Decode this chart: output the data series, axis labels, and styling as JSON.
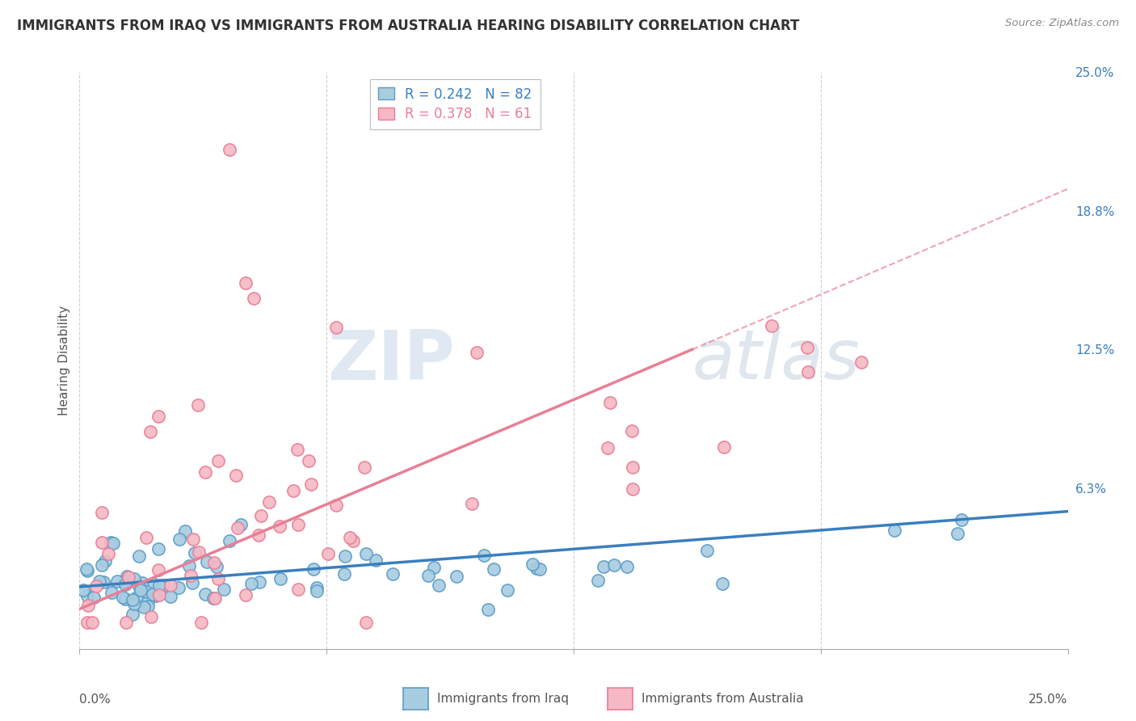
{
  "title": "IMMIGRANTS FROM IRAQ VS IMMIGRANTS FROM AUSTRALIA HEARING DISABILITY CORRELATION CHART",
  "source": "Source: ZipAtlas.com",
  "ylabel": "Hearing Disability",
  "xmin": 0.0,
  "xmax": 0.25,
  "ymin": -0.01,
  "ymax": 0.25,
  "iraq_color": "#a8cce0",
  "iraq_edge": "#5b9dc9",
  "australia_color": "#f5b8c4",
  "australia_edge": "#e87f96",
  "iraq_line_color": "#3a7fbe",
  "australia_line_color": "#e87f96",
  "watermark_zip": "ZIP",
  "watermark_atlas": "atlas",
  "background_color": "#ffffff",
  "grid_color": "#d0d0d0",
  "right_ytick_vals": [
    0.0,
    0.0625,
    0.125,
    0.1875,
    0.25
  ],
  "right_yticklabels": [
    "",
    "6.3%",
    "12.5%",
    "18.8%",
    "25.0%"
  ],
  "legend_iraq_label": "R = 0.242   N = 82",
  "legend_aus_label": "R = 0.378   N = 61",
  "bottom_legend_iraq": "Immigrants from Iraq",
  "bottom_legend_aus": "Immigrants from Australia"
}
